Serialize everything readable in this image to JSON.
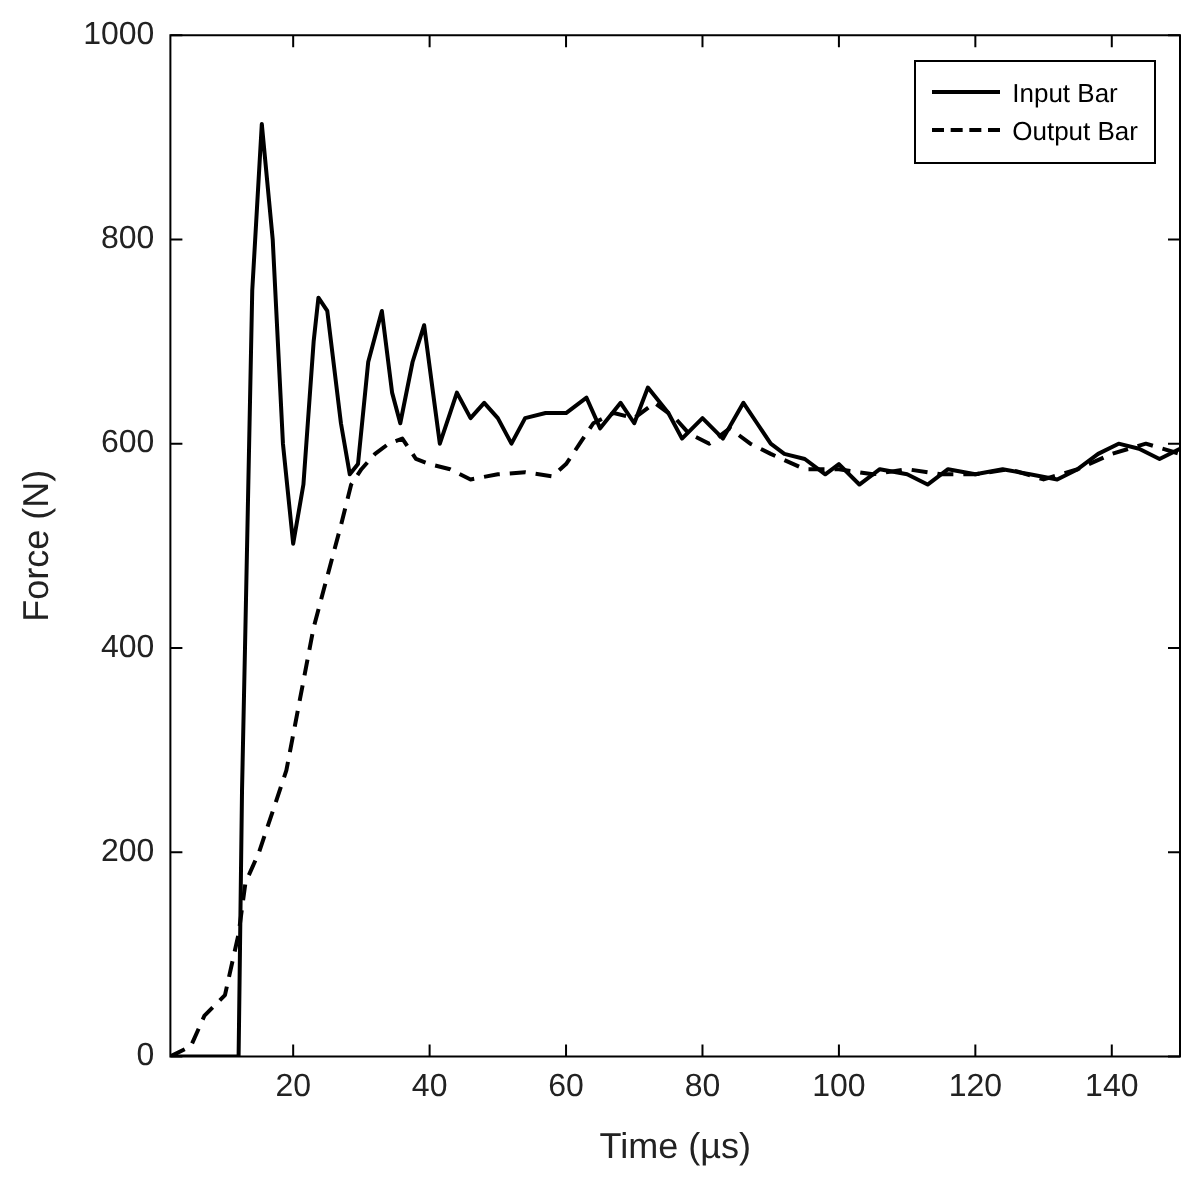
{
  "chart_data": {
    "type": "line",
    "xlabel": "Time (µs)",
    "ylabel": "Force (N)",
    "xlim": [
      2,
      150
    ],
    "xticks": [
      20,
      40,
      60,
      80,
      100,
      120,
      140
    ],
    "ylim": [
      0,
      1000
    ],
    "yticks": [
      0,
      200,
      400,
      600,
      800,
      1000
    ],
    "grid": false,
    "legend": "top right",
    "marker": "none",
    "series": [
      {
        "name": "Input Bar",
        "color": "#000000",
        "line_style": "solid",
        "x": [
          2,
          12,
          12.5,
          13,
          14,
          15.4,
          17,
          18.5,
          20,
          21.5,
          23,
          23.7,
          25,
          27,
          28.3,
          29.5,
          31,
          33,
          34.5,
          35.7,
          37.5,
          39.2,
          40.5,
          41.5,
          43,
          44,
          46,
          48,
          50,
          52,
          54,
          57,
          60,
          63,
          65,
          68,
          70,
          72,
          75,
          77,
          80,
          83,
          86,
          88,
          90,
          92,
          95,
          98,
          100,
          103,
          106,
          110,
          113,
          116,
          120,
          124,
          128,
          132,
          135,
          138,
          141,
          144,
          147,
          150
        ],
        "values": [
          0,
          0,
          260,
          420,
          750,
          913,
          800,
          600,
          502,
          560,
          700,
          743,
          730,
          620,
          570,
          580,
          680,
          730,
          650,
          620,
          680,
          716,
          650,
          600,
          630,
          650,
          625,
          640,
          625,
          600,
          625,
          630,
          630,
          645,
          615,
          640,
          620,
          655,
          630,
          605,
          625,
          605,
          640,
          620,
          600,
          590,
          585,
          570,
          580,
          560,
          575,
          570,
          560,
          575,
          570,
          575,
          570,
          565,
          575,
          590,
          600,
          595,
          585,
          595
        ]
      },
      {
        "name": "Output Bar",
        "color": "#000000",
        "line_style": "dashed",
        "x": [
          2,
          5,
          7,
          10,
          12,
          13,
          15,
          17,
          19,
          21,
          23,
          25,
          27,
          28.5,
          30,
          32,
          34,
          36,
          38,
          40,
          43,
          46,
          50,
          54,
          58,
          60,
          62,
          64,
          67,
          70,
          73,
          76,
          78,
          81,
          84,
          87,
          90,
          95,
          100,
          105,
          110,
          115,
          120,
          125,
          130,
          135,
          140,
          145,
          150
        ],
        "values": [
          0,
          10,
          40,
          60,
          120,
          170,
          200,
          240,
          280,
          350,
          420,
          470,
          520,
          560,
          575,
          590,
          600,
          605,
          585,
          580,
          575,
          565,
          570,
          572,
          568,
          580,
          600,
          620,
          630,
          625,
          640,
          625,
          610,
          600,
          615,
          600,
          590,
          575,
          575,
          570,
          575,
          570,
          570,
          575,
          565,
          575,
          590,
          600,
          590
        ]
      }
    ]
  }
}
